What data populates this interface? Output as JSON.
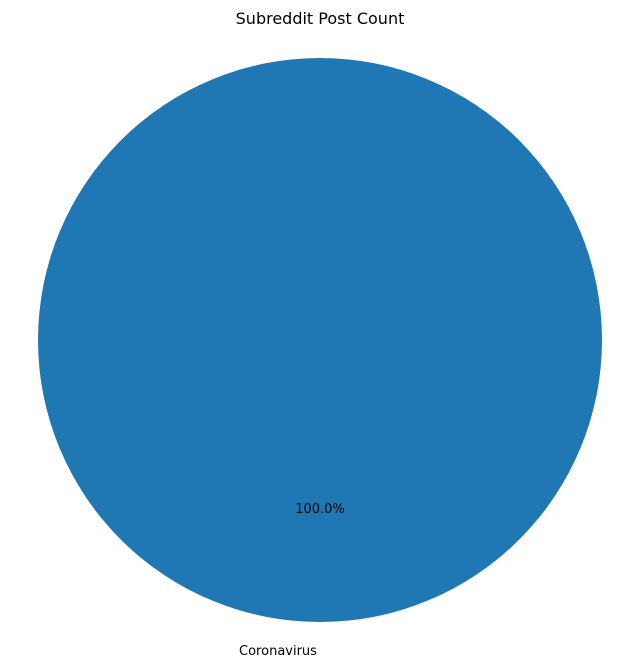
{
  "chart_data": {
    "type": "pie",
    "title": "Subreddit Post Count",
    "slices": [
      {
        "label": "Coronavirus",
        "value": 100.0,
        "percent_label": "100.0%",
        "color": "#1f77b4"
      }
    ]
  }
}
